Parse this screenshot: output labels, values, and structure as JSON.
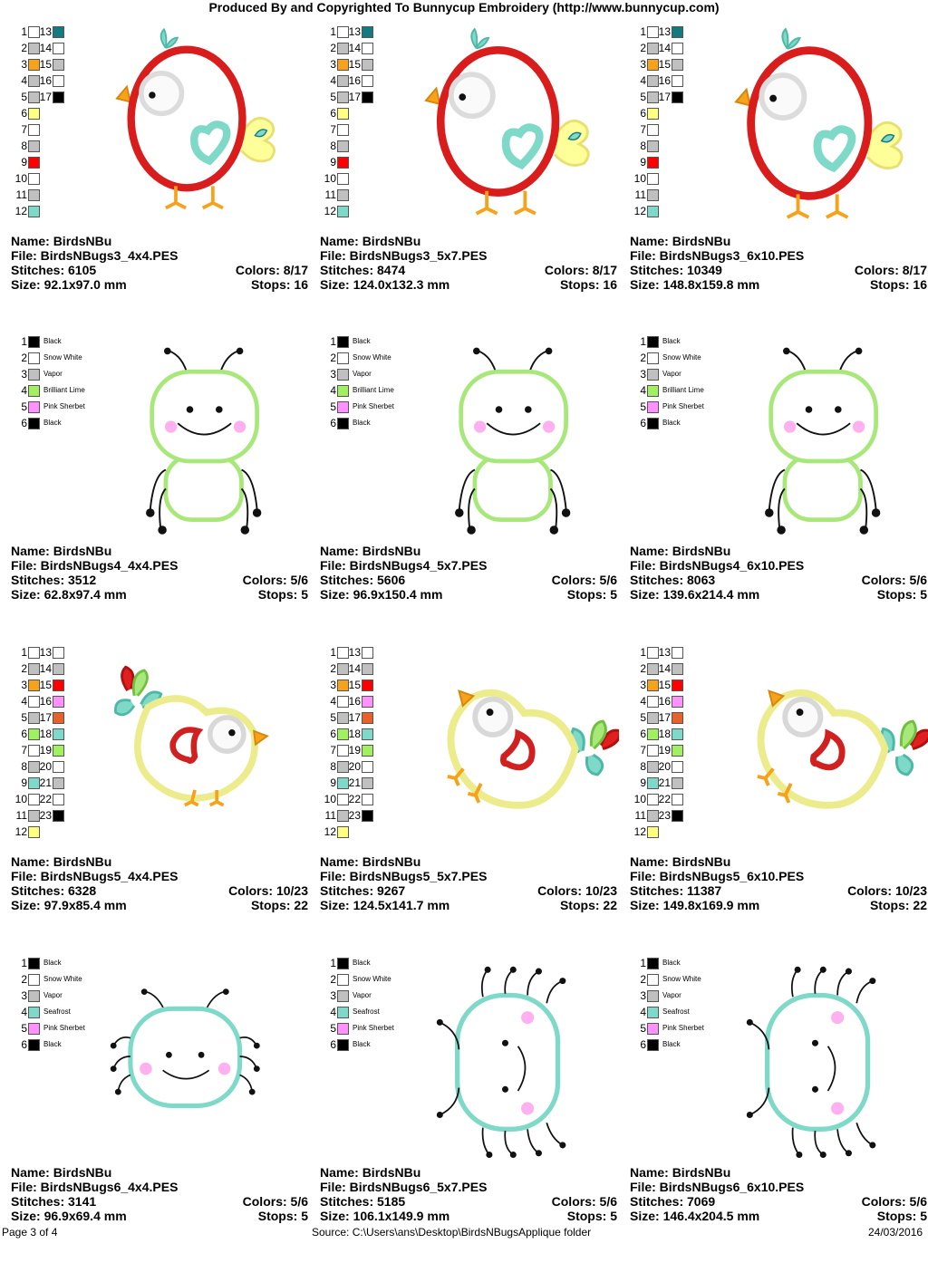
{
  "header": {
    "title": "Produced By and Copyrighted To Bunnycup Embroidery (http://www.bunnycup.com)"
  },
  "labels": {
    "name": "Name:",
    "file": "File:",
    "stitches": "Stitches:",
    "size": "Size:",
    "colors": "Colors:",
    "stops": "Stops:"
  },
  "palettes": {
    "bird3": [
      {
        "n": "1",
        "c": "#ffffff"
      },
      {
        "n": "2",
        "c": "#c0c0c0"
      },
      {
        "n": "3",
        "c": "#f7a21b"
      },
      {
        "n": "4",
        "c": "#c0c0c0"
      },
      {
        "n": "5",
        "c": "#c0c0c0"
      },
      {
        "n": "6",
        "c": "#ffff80"
      },
      {
        "n": "7",
        "c": "#ffffff"
      },
      {
        "n": "8",
        "c": "#c0c0c0"
      },
      {
        "n": "9",
        "c": "#ff0000"
      },
      {
        "n": "10",
        "c": "#ffffff"
      },
      {
        "n": "11",
        "c": "#c0c0c0"
      },
      {
        "n": "12",
        "c": "#7fd9c8"
      },
      {
        "n": "13",
        "c": "#147a82"
      },
      {
        "n": "14",
        "c": "#ffffff"
      },
      {
        "n": "15",
        "c": "#c0c0c0"
      },
      {
        "n": "16",
        "c": "#ffffff"
      },
      {
        "n": "17",
        "c": "#000000"
      }
    ],
    "bug4": [
      {
        "n": "1",
        "c": "#000000",
        "name": "Black"
      },
      {
        "n": "2",
        "c": "#ffffff",
        "name": "Snow White"
      },
      {
        "n": "3",
        "c": "#c0c0c0",
        "name": "Vapor"
      },
      {
        "n": "4",
        "c": "#a0f060",
        "name": "Brilliant Lime"
      },
      {
        "n": "5",
        "c": "#ff90ff",
        "name": "Pink Sherbet"
      },
      {
        "n": "6",
        "c": "#000000",
        "name": "Black"
      }
    ],
    "bird5": [
      {
        "n": "1",
        "c": "#ffffff"
      },
      {
        "n": "2",
        "c": "#c0c0c0"
      },
      {
        "n": "3",
        "c": "#f7a21b"
      },
      {
        "n": "4",
        "c": "#ffffff"
      },
      {
        "n": "5",
        "c": "#c0c0c0"
      },
      {
        "n": "6",
        "c": "#a0f060"
      },
      {
        "n": "7",
        "c": "#ffffff"
      },
      {
        "n": "8",
        "c": "#c0c0c0"
      },
      {
        "n": "9",
        "c": "#7fd9c8"
      },
      {
        "n": "10",
        "c": "#ffffff"
      },
      {
        "n": "11",
        "c": "#c0c0c0"
      },
      {
        "n": "12",
        "c": "#ffff80"
      },
      {
        "n": "13",
        "c": "#ffffff"
      },
      {
        "n": "14",
        "c": "#c0c0c0"
      },
      {
        "n": "15",
        "c": "#ff0000"
      },
      {
        "n": "16",
        "c": "#ff90ff"
      },
      {
        "n": "17",
        "c": "#e8602a"
      },
      {
        "n": "18",
        "c": "#7fd9c8"
      },
      {
        "n": "19",
        "c": "#a0f060"
      },
      {
        "n": "20",
        "c": "#ffffff"
      },
      {
        "n": "21",
        "c": "#c0c0c0"
      },
      {
        "n": "22",
        "c": "#ffffff"
      },
      {
        "n": "23",
        "c": "#000000"
      }
    ],
    "bug6": [
      {
        "n": "1",
        "c": "#000000",
        "name": "Black"
      },
      {
        "n": "2",
        "c": "#ffffff",
        "name": "Snow White"
      },
      {
        "n": "3",
        "c": "#c0c0c0",
        "name": "Vapor"
      },
      {
        "n": "4",
        "c": "#7fd9c8",
        "name": "Seafrost"
      },
      {
        "n": "5",
        "c": "#ff90ff",
        "name": "Pink Sherbet"
      },
      {
        "n": "6",
        "c": "#000000",
        "name": "Black"
      }
    ]
  },
  "cells": [
    {
      "name": "BirdsNBu",
      "file": "BirdsNBugs3_4x4.PES",
      "stitches": "6105",
      "colors": "8/17",
      "size": "92.1x97.0 mm",
      "stops": "16"
    },
    {
      "name": "BirdsNBu",
      "file": "BirdsNBugs3_5x7.PES",
      "stitches": "8474",
      "colors": "8/17",
      "size": "124.0x132.3 mm",
      "stops": "16"
    },
    {
      "name": "BirdsNBu",
      "file": "BirdsNBugs3_6x10.PES",
      "stitches": "10349",
      "colors": "8/17",
      "size": "148.8x159.8 mm",
      "stops": "16"
    },
    {
      "name": "BirdsNBu",
      "file": "BirdsNBugs4_4x4.PES",
      "stitches": "3512",
      "colors": "5/6",
      "size": "62.8x97.4 mm",
      "stops": "5"
    },
    {
      "name": "BirdsNBu",
      "file": "BirdsNBugs4_5x7.PES",
      "stitches": "5606",
      "colors": "5/6",
      "size": "96.9x150.4 mm",
      "stops": "5"
    },
    {
      "name": "BirdsNBu",
      "file": "BirdsNBugs4_6x10.PES",
      "stitches": "8063",
      "colors": "5/6",
      "size": "139.6x214.4 mm",
      "stops": "5"
    },
    {
      "name": "BirdsNBu",
      "file": "BirdsNBugs5_4x4.PES",
      "stitches": "6328",
      "colors": "10/23",
      "size": "97.9x85.4 mm",
      "stops": "22"
    },
    {
      "name": "BirdsNBu",
      "file": "BirdsNBugs5_5x7.PES",
      "stitches": "9267",
      "colors": "10/23",
      "size": "124.5x141.7 mm",
      "stops": "22"
    },
    {
      "name": "BirdsNBu",
      "file": "BirdsNBugs5_6x10.PES",
      "stitches": "11387",
      "colors": "10/23",
      "size": "149.8x169.9 mm",
      "stops": "22"
    },
    {
      "name": "BirdsNBu",
      "file": "BirdsNBugs6_4x4.PES",
      "stitches": "3141",
      "colors": "5/6",
      "size": "96.9x69.4 mm",
      "stops": "5"
    },
    {
      "name": "BirdsNBu",
      "file": "BirdsNBugs6_5x7.PES",
      "stitches": "5185",
      "colors": "5/6",
      "size": "106.1x149.9 mm",
      "stops": "5"
    },
    {
      "name": "BirdsNBu",
      "file": "BirdsNBugs6_6x10.PES",
      "stitches": "7069",
      "colors": "5/6",
      "size": "146.4x204.5 mm",
      "stops": "5"
    }
  ],
  "footer": {
    "page": "Page 3 of 4",
    "source": "Source:  C:\\Users\\ans\\Desktop\\BirdsNBugsApplique folder",
    "date": "24/03/2016"
  }
}
